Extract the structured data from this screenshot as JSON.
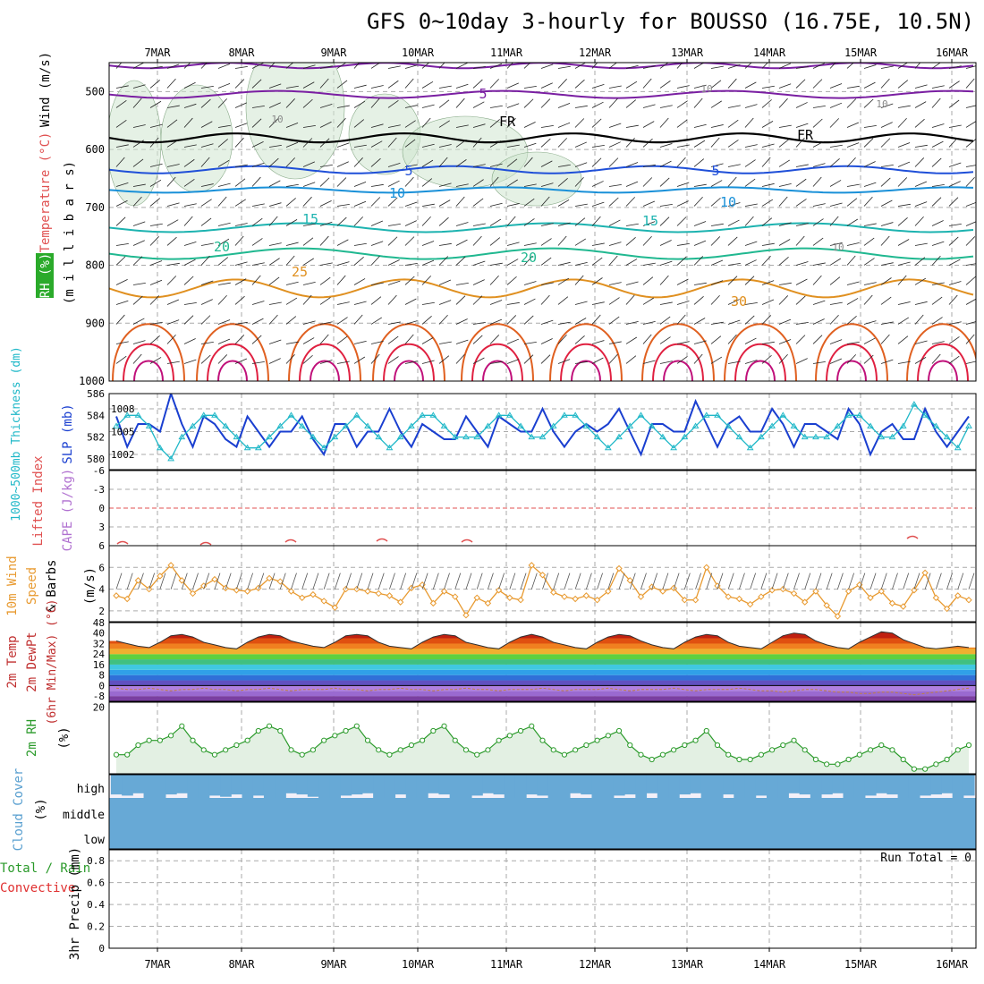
{
  "title": "GFS 0~10day 3-hourly for BOUSSO (16.75E, 10.5N)",
  "dates": [
    "7MAR",
    "8MAR",
    "9MAR",
    "10MAR",
    "11MAR",
    "12MAR",
    "13MAR",
    "14MAR",
    "15MAR",
    "16MAR"
  ],
  "colors": {
    "temp_colors": [
      "#7a1fa2",
      "#1f4fd8",
      "#1990d8",
      "#1db3b0",
      "#20b890",
      "#e09020",
      "#e06020",
      "#e02040",
      "#c0107a"
    ],
    "slp": "#1a3fd0",
    "thickness": "#20b8c8",
    "wind": "#e89a30",
    "rh": "#2a9a2a",
    "cloud": "#67a9d6",
    "precip_total": "#1a9a1a",
    "precip_conv": "#e03030",
    "cape": "#b070d0",
    "li": "#e05050"
  },
  "upper": {
    "ylabel_wind": "Wind (m/s)",
    "ylabel_temp": "Temperature (°C)",
    "ylabel_rh": "RH (%)",
    "ylabel_p": "(m i l l i b a r s)",
    "pressure_ticks": [
      "500",
      "600",
      "700",
      "800",
      "900",
      "1000"
    ],
    "contour_labels": [
      "5",
      "FR",
      "FR",
      "5",
      "5",
      "10",
      "10",
      "15",
      "15",
      "20",
      "20",
      "25",
      "30",
      "10",
      "10",
      "10",
      "10"
    ]
  },
  "pressure_panel": {
    "ylabel_thick": "1000~500mb Thickness (dm)",
    "ylabel_slp": "SLP (mb)",
    "thick_ticks": [
      "586",
      "584",
      "582",
      "580"
    ],
    "slp_ticks": [
      "1008",
      "1005",
      "1002"
    ]
  },
  "cape_panel": {
    "ylabel_li": "Lifted Index",
    "ylabel_cape": "CAPE (J/kg)",
    "ticks": [
      "-6",
      "-3",
      "0",
      "3",
      "6"
    ]
  },
  "wind_panel": {
    "ylabel1": "10m Wind",
    "ylabel2": "Speed",
    "ylabel3": "& Barbs",
    "ylabel4": "(m/s)",
    "ticks": [
      "6",
      "4",
      "2"
    ]
  },
  "temp_panel": {
    "ylabel1": "2m Temp",
    "ylabel2": "2m DewPt",
    "ylabel3": "(6hr Min/Max) (°C)",
    "ticks": [
      "48",
      "40",
      "32",
      "24",
      "16",
      "8",
      "0",
      "-8"
    ]
  },
  "rh_panel": {
    "ylabel": "2m RH",
    "unit": "(%)",
    "ticks": [
      "20"
    ]
  },
  "cloud_panel": {
    "ylabel": "Cloud Cover",
    "unit": "(%)",
    "levels": [
      "high",
      "middle",
      "low"
    ]
  },
  "precip_panel": {
    "ylabel1": "Total / Rain",
    "ylabel2": "Convective",
    "ylabel3": "3hr Precip (mm)",
    "ticks": [
      "0.8",
      "0.6",
      "0.4",
      "0.2",
      "0"
    ],
    "run_total": "Run Total = 0"
  },
  "chart_data": {
    "type": "line",
    "title": "GFS 0~10day 3-hourly for BOUSSO (16.75E, 10.5N)",
    "x_categories": [
      "7MAR",
      "8MAR",
      "9MAR",
      "10MAR",
      "11MAR",
      "12MAR",
      "13MAR",
      "14MAR",
      "15MAR",
      "16MAR"
    ],
    "slp_mb": [
      1007,
      1003,
      1006,
      1006,
      1005,
      1010,
      1006,
      1003,
      1007,
      1006,
      1004,
      1003,
      1007,
      1005,
      1003,
      1005,
      1005,
      1007,
      1004,
      1002,
      1006,
      1006,
      1003,
      1005,
      1005,
      1008,
      1005,
      1003,
      1006,
      1005,
      1004,
      1004,
      1007,
      1005,
      1003,
      1007,
      1006,
      1005,
      1005,
      1008,
      1005,
      1003,
      1005,
      1006,
      1005,
      1006,
      1008,
      1005,
      1002,
      1006,
      1006,
      1005,
      1005,
      1009,
      1006,
      1003,
      1006,
      1007,
      1005,
      1005,
      1008,
      1006,
      1003,
      1006,
      1006,
      1005,
      1004,
      1008,
      1006,
      1002,
      1005,
      1006,
      1004,
      1004,
      1008,
      1005,
      1003,
      1005,
      1007
    ],
    "thickness_dm": [
      583,
      584,
      584,
      583,
      581,
      580,
      582,
      583,
      584,
      584,
      583,
      582,
      581,
      581,
      582,
      583,
      584,
      583,
      582,
      581,
      582,
      583,
      584,
      583,
      582,
      581,
      582,
      583,
      584,
      584,
      583,
      582,
      582,
      582,
      583,
      584,
      584,
      583,
      582,
      582,
      583,
      584,
      584,
      583,
      582,
      581,
      582,
      583,
      584,
      583,
      582,
      581,
      582,
      583,
      584,
      584,
      583,
      582,
      581,
      582,
      583,
      584,
      583,
      582,
      582,
      582,
      583,
      584,
      584,
      583,
      582,
      582,
      583,
      585,
      584,
      583,
      582,
      581,
      583
    ],
    "wind_ms": [
      3.4,
      3.1,
      4.8,
      4.0,
      5.2,
      6.2,
      4.8,
      3.6,
      4.3,
      4.9,
      4.1,
      3.9,
      3.8,
      4.1,
      5.0,
      4.7,
      3.8,
      3.2,
      3.5,
      2.9,
      2.3,
      4.0,
      4.0,
      3.8,
      3.6,
      3.4,
      2.8,
      4.1,
      4.4,
      2.7,
      3.8,
      3.3,
      1.6,
      3.2,
      2.7,
      3.9,
      3.2,
      3.0,
      6.2,
      5.3,
      3.7,
      3.3,
      3.1,
      3.4,
      3.0,
      3.8,
      5.9,
      4.8,
      3.3,
      4.2,
      3.8,
      4.1,
      3.0,
      3.0,
      6.0,
      4.3,
      3.3,
      3.1,
      2.6,
      3.3,
      3.9,
      4.0,
      3.6,
      2.8,
      3.8,
      2.5,
      1.5,
      3.8,
      4.4,
      3.2,
      3.8,
      2.7,
      2.4,
      3.9,
      5.5,
      3.2,
      2.2,
      3.4,
      3.0
    ],
    "temp_2m_c": [
      34,
      32,
      30,
      29,
      33,
      38,
      39,
      37,
      33,
      31,
      29,
      28,
      33,
      37,
      39,
      38,
      34,
      32,
      30,
      29,
      33,
      38,
      39,
      38,
      33,
      30,
      29,
      28,
      33,
      37,
      39,
      38,
      33,
      31,
      29,
      28,
      33,
      37,
      39,
      37,
      33,
      31,
      29,
      28,
      33,
      37,
      39,
      38,
      34,
      31,
      29,
      28,
      33,
      37,
      39,
      38,
      33,
      30,
      29,
      28,
      33,
      38,
      40,
      39,
      34,
      31,
      29,
      28,
      33,
      37,
      41,
      40,
      35,
      32,
      29,
      28,
      29,
      30,
      29
    ],
    "dewpoint_2m_c": [
      -2,
      -3,
      -3,
      -2,
      -3,
      -4,
      -3,
      -3,
      -2,
      -3,
      -3,
      -4,
      -3,
      -3,
      -2,
      -3,
      -4,
      -3,
      -3,
      -3,
      -2,
      -3,
      -3,
      -4,
      -3,
      -3,
      -2,
      -3,
      -3,
      -4,
      -3,
      -3,
      -2,
      -3,
      -3,
      -4,
      -3,
      -3,
      -3,
      -2,
      -3,
      -4,
      -3,
      -3,
      -3,
      -2,
      -3,
      -4,
      -3,
      -3,
      -3,
      -2,
      -3,
      -4,
      -3,
      -3,
      -3,
      -2,
      -3,
      -4,
      -4,
      -5,
      -4,
      -3,
      -3,
      -4,
      -5,
      -5,
      -6,
      -6,
      -5,
      -5,
      -6,
      -7,
      -6,
      -5,
      -4,
      -3,
      -2
    ],
    "rh_2m_pct": [
      10,
      10,
      12,
      13,
      13,
      14,
      16,
      13,
      11,
      10,
      11,
      12,
      13,
      15,
      16,
      15,
      11,
      10,
      11,
      13,
      14,
      15,
      16,
      13,
      11,
      10,
      11,
      12,
      13,
      15,
      16,
      13,
      11,
      10,
      11,
      13,
      14,
      15,
      16,
      13,
      11,
      10,
      11,
      12,
      13,
      14,
      15,
      12,
      10,
      9,
      10,
      11,
      12,
      13,
      15,
      12,
      10,
      9,
      9,
      10,
      11,
      12,
      13,
      11,
      9,
      8,
      8,
      9,
      10,
      11,
      12,
      11,
      9,
      7,
      7,
      8,
      9,
      11,
      12
    ],
    "cloud_high_pct": [
      85,
      90,
      80,
      100,
      100,
      85,
      80,
      100,
      100,
      90,
      95,
      85,
      100,
      90,
      100,
      100,
      80,
      85,
      95,
      100,
      100,
      90,
      85,
      80,
      100,
      100,
      85,
      100,
      100,
      80,
      85,
      100,
      100,
      90,
      80,
      85,
      100,
      100,
      85,
      90,
      100,
      100,
      80,
      85,
      100,
      100,
      90,
      85,
      100,
      80,
      100,
      100,
      85,
      80,
      100,
      100,
      85,
      100,
      100,
      90,
      100,
      100,
      80,
      85,
      100,
      85,
      80,
      100,
      100,
      90,
      80,
      85,
      100,
      100,
      90,
      85,
      80,
      100,
      90
    ],
    "cloud_mid_pct": 100,
    "cloud_low_pct": 100,
    "precip_mm_3hr": 0,
    "run_total_mm": 0,
    "pressure_range_mb": [
      450,
      1000
    ],
    "slp_range_mb": [
      1000,
      1010
    ],
    "thickness_range_dm": [
      579,
      586
    ],
    "wind_range_ms": [
      1,
      8
    ],
    "temp_range_c": [
      -12,
      48
    ],
    "precip_range_mm": [
      0,
      0.9
    ]
  }
}
